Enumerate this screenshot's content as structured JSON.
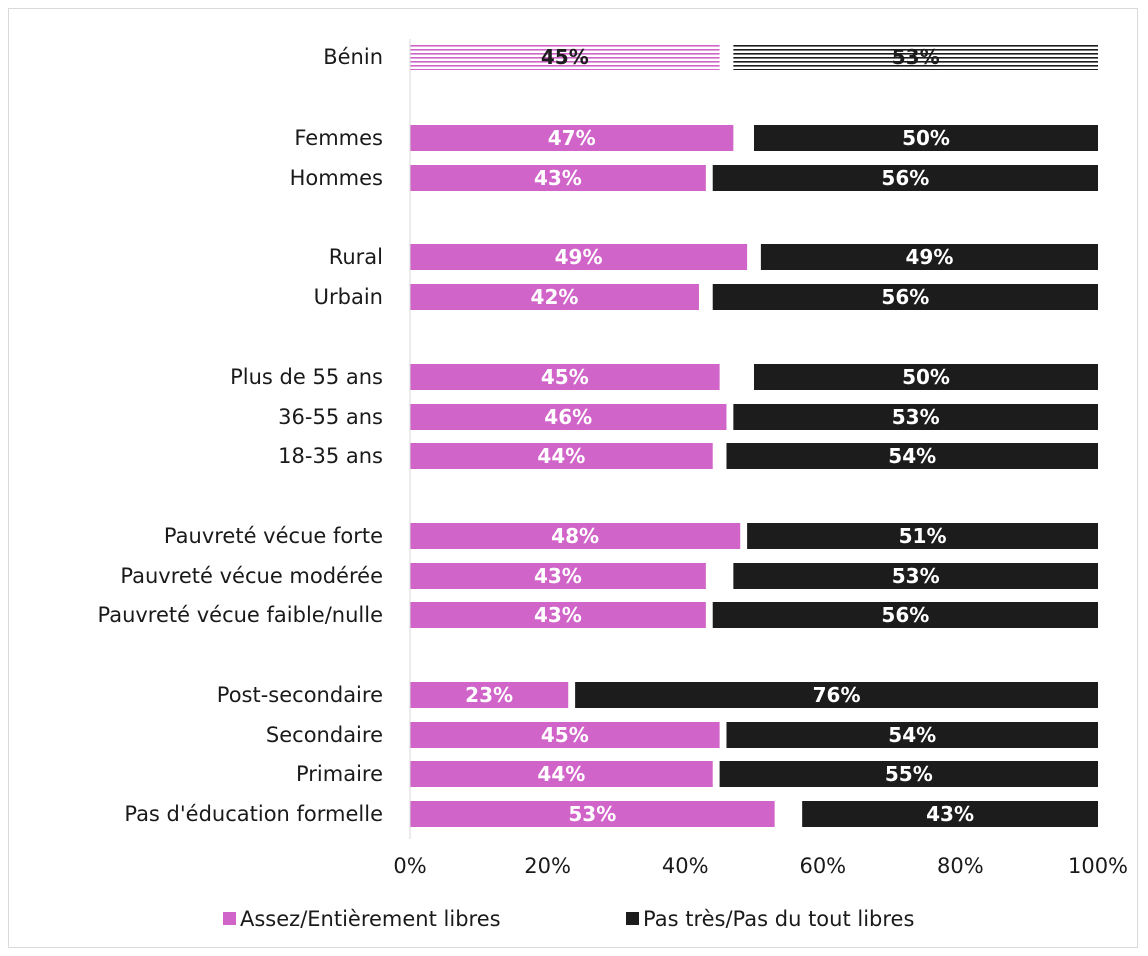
{
  "chart_data": {
    "type": "bar",
    "stacked": true,
    "orientation": "horizontal",
    "title": "",
    "xlabel": "",
    "ylabel": "",
    "xlim": [
      0,
      100
    ],
    "x_ticks": [
      "0%",
      "20%",
      "40%",
      "60%",
      "80%",
      "100%"
    ],
    "grid": false,
    "legend_position": "bottom",
    "categories": [
      "Bénin",
      "Femmes",
      "Hommes",
      "Rural",
      "Urbain",
      "Plus de 55 ans",
      "36-55 ans",
      "18-35 ans",
      "Pauvreté vécue forte",
      "Pauvreté vécue modérée",
      "Pauvreté vécue faible/nulle",
      "Post-secondaire",
      "Secondaire",
      "Primaire",
      "Pas d'éducation formelle"
    ],
    "series": [
      {
        "name": "Assez/Entièrement libres",
        "color": "#d064c8",
        "values": [
          45,
          47,
          43,
          49,
          42,
          45,
          46,
          44,
          48,
          43,
          43,
          23,
          45,
          44,
          53
        ],
        "labels": [
          "45%",
          "47%",
          "43%",
          "49%",
          "42%",
          "45%",
          "46%",
          "44%",
          "48%",
          "43%",
          "43%",
          "23%",
          "45%",
          "44%",
          "53%"
        ]
      },
      {
        "name": "Pas très/Pas du tout libres",
        "color": "#1c1c1c",
        "values": [
          53,
          50,
          56,
          49,
          56,
          50,
          53,
          54,
          51,
          53,
          56,
          76,
          54,
          55,
          43
        ],
        "labels": [
          "53%",
          "50%",
          "56%",
          "49%",
          "56%",
          "50%",
          "53%",
          "54%",
          "51%",
          "53%",
          "56%",
          "76%",
          "54%",
          "55%",
          "43%"
        ]
      }
    ]
  }
}
